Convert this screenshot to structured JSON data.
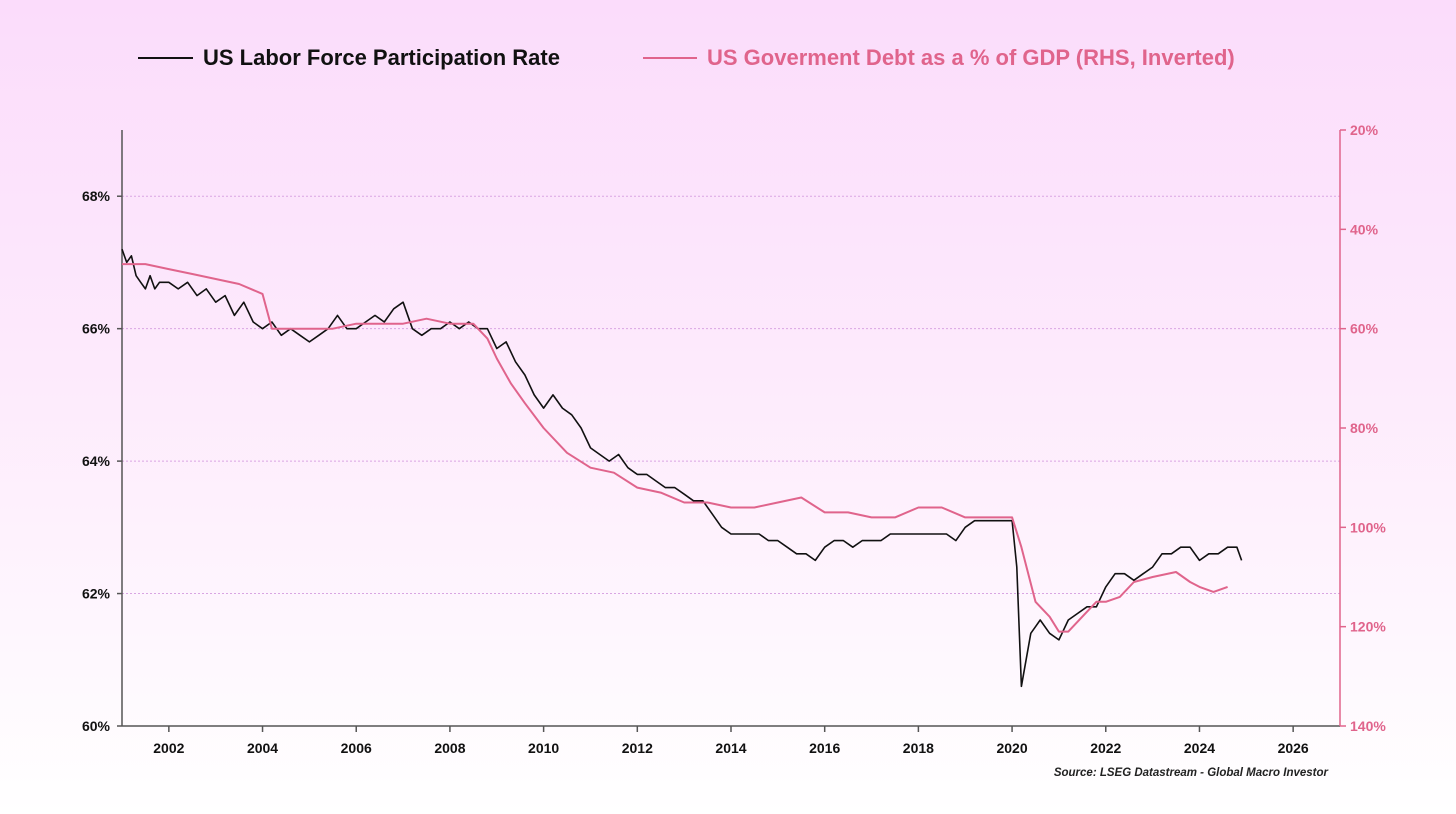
{
  "colors": {
    "left_series": "#111111",
    "right_series": "#e0648c",
    "right_axis": "#e0648c",
    "gridline": "#d9a5e3",
    "left_axis": "#555555"
  },
  "legend": {
    "left_label": "US Labor Force Participation Rate",
    "right_label": "US Goverment Debt as a % of GDP (RHS, Inverted)"
  },
  "source_text": "Source: LSEG Datastream - Global Macro Investor",
  "chart_data": {
    "type": "line",
    "legend_position": "top",
    "grid": true,
    "x_axis": {
      "range": [
        2001,
        2027
      ],
      "ticks": [
        2002,
        2004,
        2006,
        2008,
        2010,
        2012,
        2014,
        2016,
        2018,
        2020,
        2022,
        2024,
        2026
      ],
      "tick_labels": [
        "2002",
        "2004",
        "2006",
        "2008",
        "2010",
        "2012",
        "2014",
        "2016",
        "2018",
        "2020",
        "2022",
        "2024",
        "2026"
      ]
    },
    "y_left": {
      "range": [
        60,
        69
      ],
      "ticks": [
        60,
        62,
        64,
        66,
        68
      ],
      "tick_labels": [
        "60%",
        "62%",
        "64%",
        "66%",
        "68%"
      ],
      "gridlines": [
        62,
        64,
        66,
        68
      ]
    },
    "y_right": {
      "inverted": true,
      "range": [
        20,
        140
      ],
      "ticks": [
        20,
        40,
        60,
        80,
        100,
        120,
        140
      ],
      "tick_labels": [
        "20%",
        "40%",
        "60%",
        "80%",
        "100%",
        "120%",
        "140%"
      ]
    },
    "series": [
      {
        "name": "US Labor Force Participation Rate",
        "axis": "left",
        "x": [
          2001.0,
          2001.1,
          2001.2,
          2001.3,
          2001.4,
          2001.5,
          2001.6,
          2001.7,
          2001.8,
          2001.9,
          2002.0,
          2002.2,
          2002.4,
          2002.6,
          2002.8,
          2003.0,
          2003.2,
          2003.4,
          2003.6,
          2003.8,
          2004.0,
          2004.2,
          2004.4,
          2004.6,
          2004.8,
          2005.0,
          2005.2,
          2005.4,
          2005.6,
          2005.8,
          2006.0,
          2006.2,
          2006.4,
          2006.6,
          2006.8,
          2007.0,
          2007.2,
          2007.4,
          2007.6,
          2007.8,
          2008.0,
          2008.2,
          2008.4,
          2008.6,
          2008.8,
          2009.0,
          2009.2,
          2009.4,
          2009.6,
          2009.8,
          2010.0,
          2010.2,
          2010.4,
          2010.6,
          2010.8,
          2011.0,
          2011.2,
          2011.4,
          2011.6,
          2011.8,
          2012.0,
          2012.2,
          2012.4,
          2012.6,
          2012.8,
          2013.0,
          2013.2,
          2013.4,
          2013.6,
          2013.8,
          2014.0,
          2014.2,
          2014.4,
          2014.6,
          2014.8,
          2015.0,
          2015.2,
          2015.4,
          2015.6,
          2015.8,
          2016.0,
          2016.2,
          2016.4,
          2016.6,
          2016.8,
          2017.0,
          2017.2,
          2017.4,
          2017.6,
          2017.8,
          2018.0,
          2018.2,
          2018.4,
          2018.6,
          2018.8,
          2019.0,
          2019.2,
          2019.4,
          2019.6,
          2019.8,
          2020.0,
          2020.1,
          2020.2,
          2020.3,
          2020.4,
          2020.5,
          2020.6,
          2020.8,
          2021.0,
          2021.2,
          2021.4,
          2021.6,
          2021.8,
          2022.0,
          2022.2,
          2022.4,
          2022.6,
          2022.8,
          2023.0,
          2023.2,
          2023.4,
          2023.6,
          2023.8,
          2024.0,
          2024.2,
          2024.4,
          2024.6,
          2024.8,
          2024.9
        ],
        "values": [
          67.2,
          67.0,
          67.1,
          66.8,
          66.7,
          66.6,
          66.8,
          66.6,
          66.7,
          66.7,
          66.7,
          66.6,
          66.7,
          66.5,
          66.6,
          66.4,
          66.5,
          66.2,
          66.4,
          66.1,
          66.0,
          66.1,
          65.9,
          66.0,
          65.9,
          65.8,
          65.9,
          66.0,
          66.2,
          66.0,
          66.0,
          66.1,
          66.2,
          66.1,
          66.3,
          66.4,
          66.0,
          65.9,
          66.0,
          66.0,
          66.1,
          66.0,
          66.1,
          66.0,
          66.0,
          65.7,
          65.8,
          65.5,
          65.3,
          65.0,
          64.8,
          65.0,
          64.8,
          64.7,
          64.5,
          64.2,
          64.1,
          64.0,
          64.1,
          63.9,
          63.8,
          63.8,
          63.7,
          63.6,
          63.6,
          63.5,
          63.4,
          63.4,
          63.2,
          63.0,
          62.9,
          62.9,
          62.9,
          62.9,
          62.8,
          62.8,
          62.7,
          62.6,
          62.6,
          62.5,
          62.7,
          62.8,
          62.8,
          62.7,
          62.8,
          62.8,
          62.8,
          62.9,
          62.9,
          62.9,
          62.9,
          62.9,
          62.9,
          62.9,
          62.8,
          63.0,
          63.1,
          63.1,
          63.1,
          63.1,
          63.1,
          62.4,
          60.6,
          61.0,
          61.4,
          61.5,
          61.6,
          61.4,
          61.3,
          61.6,
          61.7,
          61.8,
          61.8,
          62.1,
          62.3,
          62.3,
          62.2,
          62.3,
          62.4,
          62.6,
          62.6,
          62.7,
          62.7,
          62.5,
          62.6,
          62.6,
          62.7,
          62.7,
          62.5
        ]
      },
      {
        "name": "US Goverment Debt as a % of GDP (RHS, Inverted)",
        "axis": "right",
        "x": [
          2001.0,
          2001.5,
          2002.0,
          2002.5,
          2003.0,
          2003.5,
          2004.0,
          2004.2,
          2004.4,
          2005.0,
          2005.5,
          2006.0,
          2006.5,
          2007.0,
          2007.5,
          2008.0,
          2008.5,
          2008.8,
          2009.0,
          2009.3,
          2009.6,
          2010.0,
          2010.5,
          2011.0,
          2011.5,
          2012.0,
          2012.5,
          2013.0,
          2013.5,
          2014.0,
          2014.5,
          2015.0,
          2015.5,
          2016.0,
          2016.5,
          2017.0,
          2017.5,
          2018.0,
          2018.5,
          2019.0,
          2019.5,
          2020.0,
          2020.2,
          2020.5,
          2020.8,
          2021.0,
          2021.2,
          2021.5,
          2021.8,
          2022.0,
          2022.3,
          2022.6,
          2023.0,
          2023.5,
          2023.8,
          2024.0,
          2024.3,
          2024.6
        ],
        "values": [
          47,
          47,
          48,
          49,
          50,
          51,
          53,
          60,
          60,
          60,
          60,
          59,
          59,
          59,
          58,
          59,
          59,
          62,
          66,
          71,
          75,
          80,
          85,
          88,
          89,
          92,
          93,
          95,
          95,
          96,
          96,
          95,
          94,
          97,
          97,
          98,
          98,
          96,
          96,
          98,
          98,
          98,
          104,
          115,
          118,
          121,
          121,
          118,
          115,
          115,
          114,
          111,
          110,
          109,
          111,
          112,
          113,
          112
        ]
      }
    ]
  }
}
